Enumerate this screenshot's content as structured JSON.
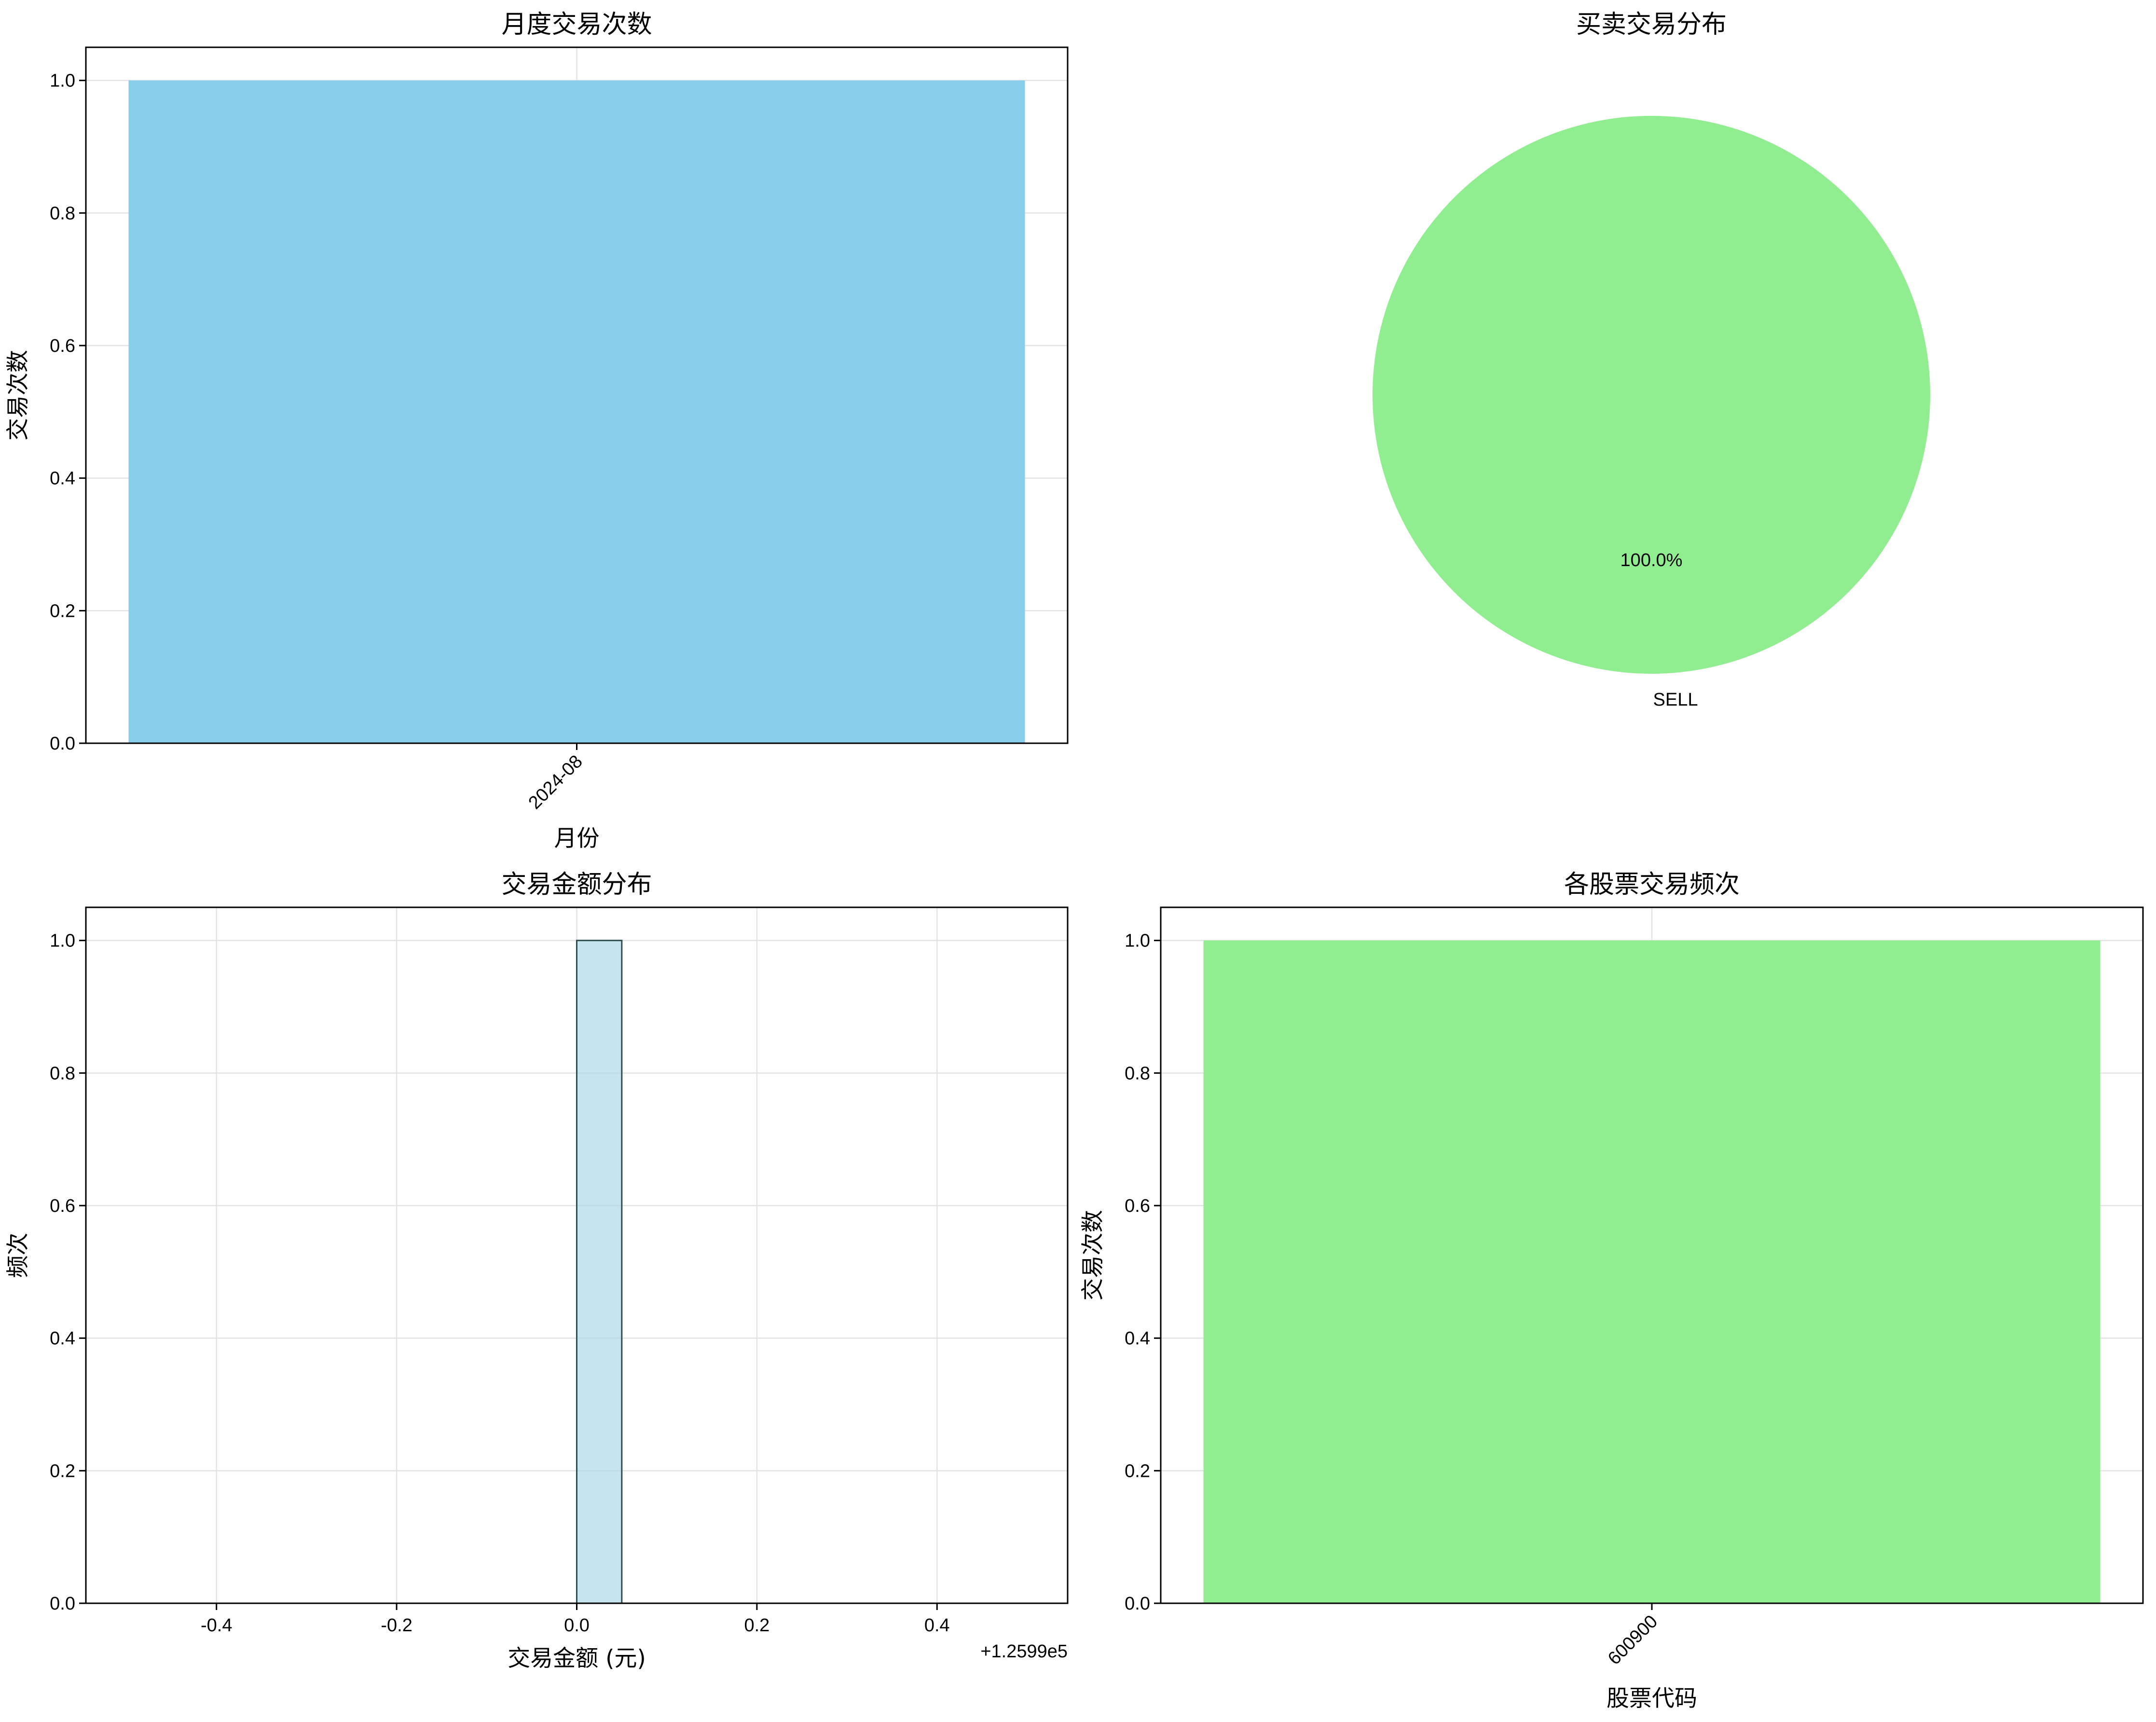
{
  "chart_data": [
    {
      "type": "bar",
      "title": "月度交易次数",
      "xlabel": "月份",
      "ylabel": "交易次数",
      "categories": [
        "2024-08"
      ],
      "values": [
        1
      ],
      "ylim": [
        0,
        1.05
      ],
      "yticks": [
        "0.0",
        "0.2",
        "0.4",
        "0.6",
        "0.8",
        "1.0"
      ],
      "x_tick_rotation": 45,
      "bar_color": "#87CEEB",
      "grid": true
    },
    {
      "type": "pie",
      "title": "买卖交易分布",
      "slices": [
        {
          "label": "SELL",
          "value": 1,
          "pct_label": "100.0%"
        }
      ],
      "slice_color": "#90EE90"
    },
    {
      "type": "bar",
      "subtype": "histogram",
      "title": "交易金额分布",
      "xlabel": "交易金额 (元)",
      "ylabel": "频次",
      "x_offset_label": "+1.2599e5",
      "xticks": [
        "-0.4",
        "-0.2",
        "0.0",
        "0.2",
        "0.4"
      ],
      "xlim": [
        -0.5,
        0.5
      ],
      "bins": [
        {
          "from": 0.0,
          "to": 0.05,
          "count": 1
        }
      ],
      "ylim": [
        0,
        1.05
      ],
      "yticks": [
        "0.0",
        "0.2",
        "0.4",
        "0.6",
        "0.8",
        "1.0"
      ],
      "bar_color": "#ADD8E6",
      "edge_color": "#2F4F4F",
      "grid": true
    },
    {
      "type": "bar",
      "title": "各股票交易频次",
      "xlabel": "股票代码",
      "ylabel": "交易次数",
      "categories": [
        "600900"
      ],
      "values": [
        1
      ],
      "ylim": [
        0,
        1.05
      ],
      "yticks": [
        "0.0",
        "0.2",
        "0.4",
        "0.6",
        "0.8",
        "1.0"
      ],
      "x_tick_rotation": 45,
      "bar_color": "#90EE90",
      "grid": true
    }
  ]
}
